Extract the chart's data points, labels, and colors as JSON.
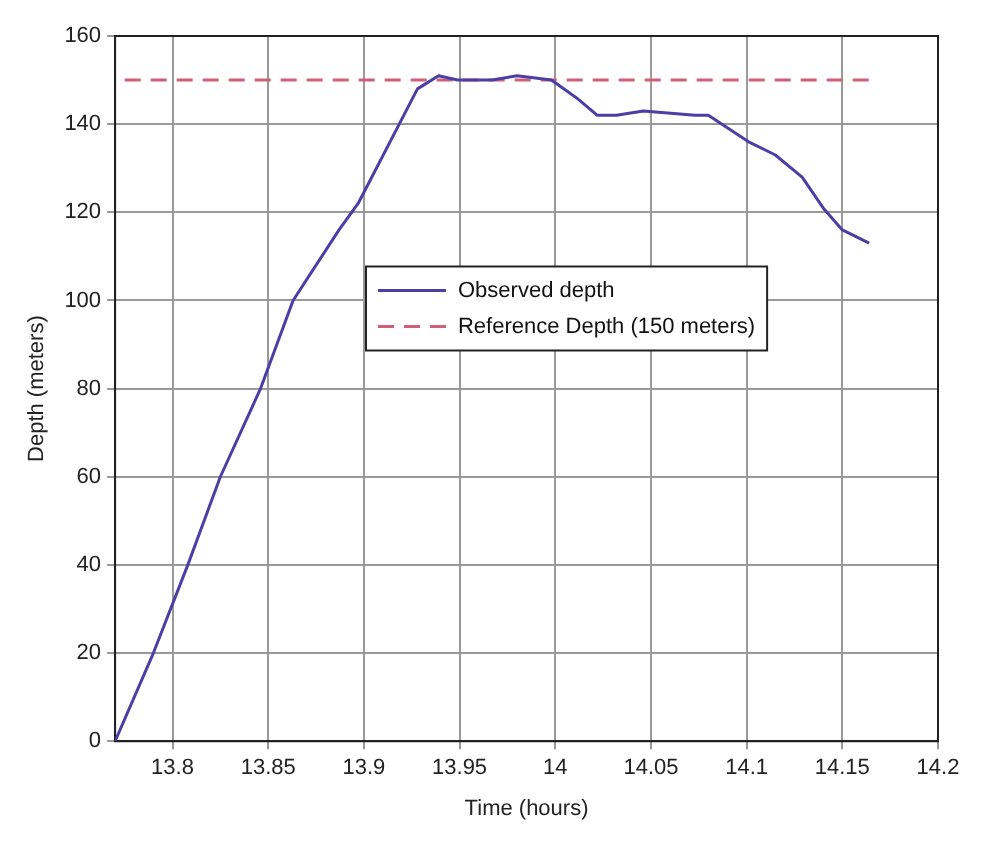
{
  "chart_data": {
    "type": "line",
    "xlabel": "Time (hours)",
    "ylabel": "Depth (meters)",
    "series": [
      {
        "name": "Observed depth",
        "color": "#4b3fa6",
        "line_style": "solid",
        "x": [
          13.77,
          13.79,
          13.808,
          13.825,
          13.846,
          13.863,
          13.887,
          13.897,
          13.928,
          13.939,
          13.949,
          13.967,
          13.98,
          13.998,
          14.011,
          14.022,
          14.032,
          14.046,
          14.073,
          14.08,
          14.101,
          14.115,
          14.129,
          14.14,
          14.15,
          14.164
        ],
        "values": [
          0,
          20,
          40,
          60,
          80,
          100,
          116,
          122,
          148,
          151,
          150,
          150,
          151,
          150,
          146,
          142,
          142,
          143,
          142,
          142,
          136,
          133,
          128,
          121,
          116,
          113
        ]
      },
      {
        "name": "Reference Depth (150 meters)",
        "color": "#d0607a",
        "line_style": "dashed",
        "x": [
          13.775,
          14.165
        ],
        "values": [
          150,
          150
        ]
      }
    ],
    "xlim": [
      13.77,
      14.2
    ],
    "xticks": [
      13.8,
      13.85,
      13.9,
      13.95,
      14,
      14.05,
      14.1,
      14.15,
      14.2
    ],
    "ylim": [
      0,
      160
    ],
    "yticks": [
      0,
      20,
      40,
      60,
      80,
      100,
      120,
      140,
      160
    ],
    "grid": true,
    "legend": "center",
    "marker": "none"
  }
}
